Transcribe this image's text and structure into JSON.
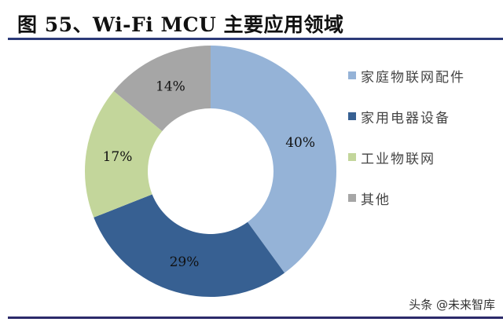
{
  "header": {
    "title": "图 55、Wi-Fi MCU 主要应用领域"
  },
  "watermark": "头条 @未来智库",
  "chart_data": {
    "type": "pie",
    "subtype": "donut",
    "title": "图 55、Wi-Fi MCU 主要应用领域",
    "categories": [
      "家庭物联网配件",
      "家用电器设备",
      "工业物联网",
      "其他"
    ],
    "values": [
      40,
      29,
      17,
      14
    ],
    "labels": [
      "40%",
      "29%",
      "17%",
      "14%"
    ],
    "colors": [
      "#95b3d7",
      "#376092",
      "#c3d69b",
      "#a6a6a6"
    ],
    "legend_position": "right",
    "start_angle": "12 o'clock, clockwise"
  },
  "legend": {
    "items": [
      {
        "label": "家庭物联网配件",
        "color": "#95b3d7"
      },
      {
        "label": "家用电器设备",
        "color": "#376092"
      },
      {
        "label": "工业物联网",
        "color": "#c3d69b"
      },
      {
        "label": "其他",
        "color": "#a6a6a6"
      }
    ]
  }
}
